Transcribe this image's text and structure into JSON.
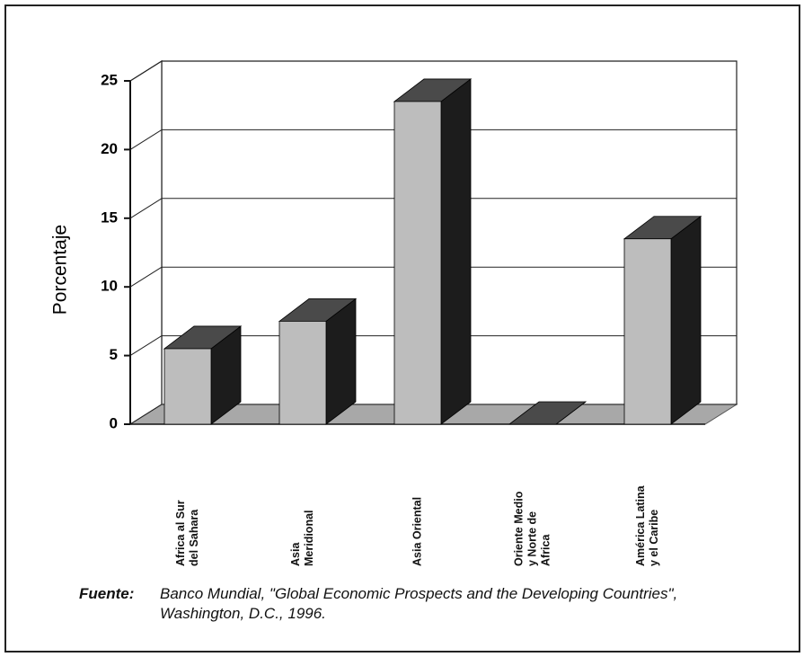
{
  "chart_data": {
    "type": "bar3d",
    "ylabel": "Porcentaje",
    "categories": [
      "Africa al Sur\ndel Sahara",
      "Asia\nMeridional",
      "Asia Oriental",
      "Oriente Medio\ny Norte de\nAfrica",
      "América Latina\ny el Caribe"
    ],
    "values": [
      5.5,
      7.5,
      23.5,
      0,
      13.5
    ],
    "colors": {
      "front": "#bdbdbd",
      "side": "#1c1c1c",
      "top": "#4a4a4a",
      "floor": "#a8a8a8"
    },
    "ylim": [
      0,
      25
    ],
    "yticks": [
      0,
      5,
      10,
      15,
      20,
      25
    ],
    "grid": true,
    "source_label": "Fuente:",
    "source_text": "Banco Mundial, \"Global Economic Prospects and the Developing Countries\", Washington, D.C., 1996."
  }
}
